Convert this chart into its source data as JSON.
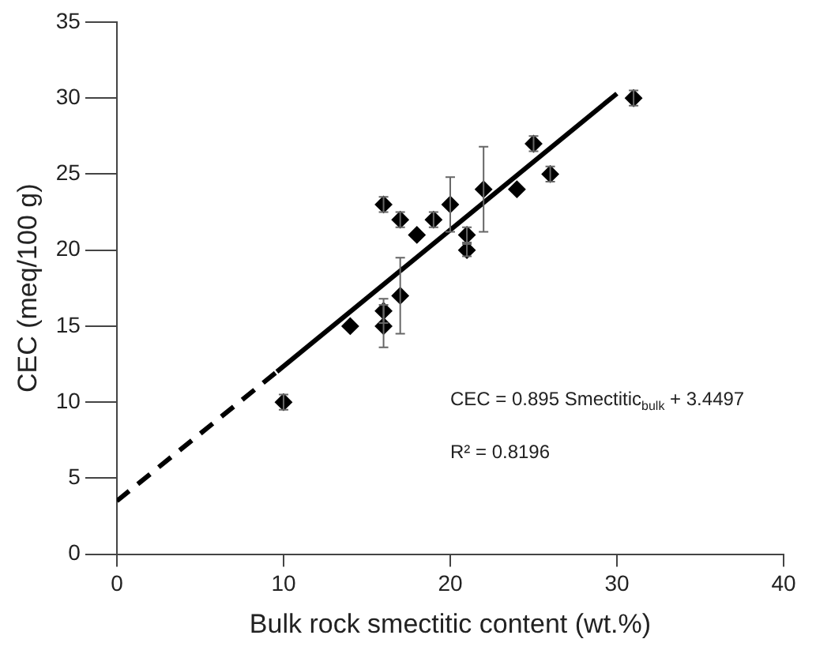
{
  "chart_data": {
    "type": "scatter",
    "xlabel": "Bulk rock smectitic content (wt.%)",
    "ylabel": "CEC (meq/100 g)",
    "xlim": [
      0,
      40
    ],
    "xticks": [
      0,
      10,
      20,
      30,
      40
    ],
    "ylim": [
      0,
      35
    ],
    "yticks": [
      0,
      5,
      10,
      15,
      20,
      25,
      30,
      35
    ],
    "grid": false,
    "legend": false,
    "marker": "diamond",
    "series": [
      {
        "color": "#000000",
        "x": [
          10,
          14,
          16,
          16,
          16,
          17,
          17,
          18,
          19,
          20,
          21,
          21,
          22,
          24,
          25,
          26,
          31
        ],
        "values": [
          10,
          15,
          16,
          15,
          23,
          22,
          17,
          21,
          22,
          23,
          21,
          20,
          24,
          24,
          27,
          25,
          30
        ],
        "errors": [
          0.5,
          null,
          0.8,
          1.4,
          0.5,
          0.5,
          2.5,
          null,
          0.5,
          1.8,
          0.5,
          0.4,
          2.8,
          null,
          0.5,
          0.5,
          0.5
        ]
      },
      {
        "type": "line",
        "color": "#000000",
        "line_style": "solid",
        "marker": "none",
        "x": [
          9.6,
          30
        ],
        "values": [
          12.0,
          30.3
        ]
      },
      {
        "type": "line",
        "color": "#000000",
        "line_style": "dashed",
        "marker": "none",
        "x": [
          0,
          9.6
        ],
        "values": [
          3.5,
          12.0
        ]
      }
    ],
    "annotations": [
      "CEC = 0.895 Smectitic$_{bulk}$ + 3.4497",
      "R² = 0.8196"
    ]
  }
}
